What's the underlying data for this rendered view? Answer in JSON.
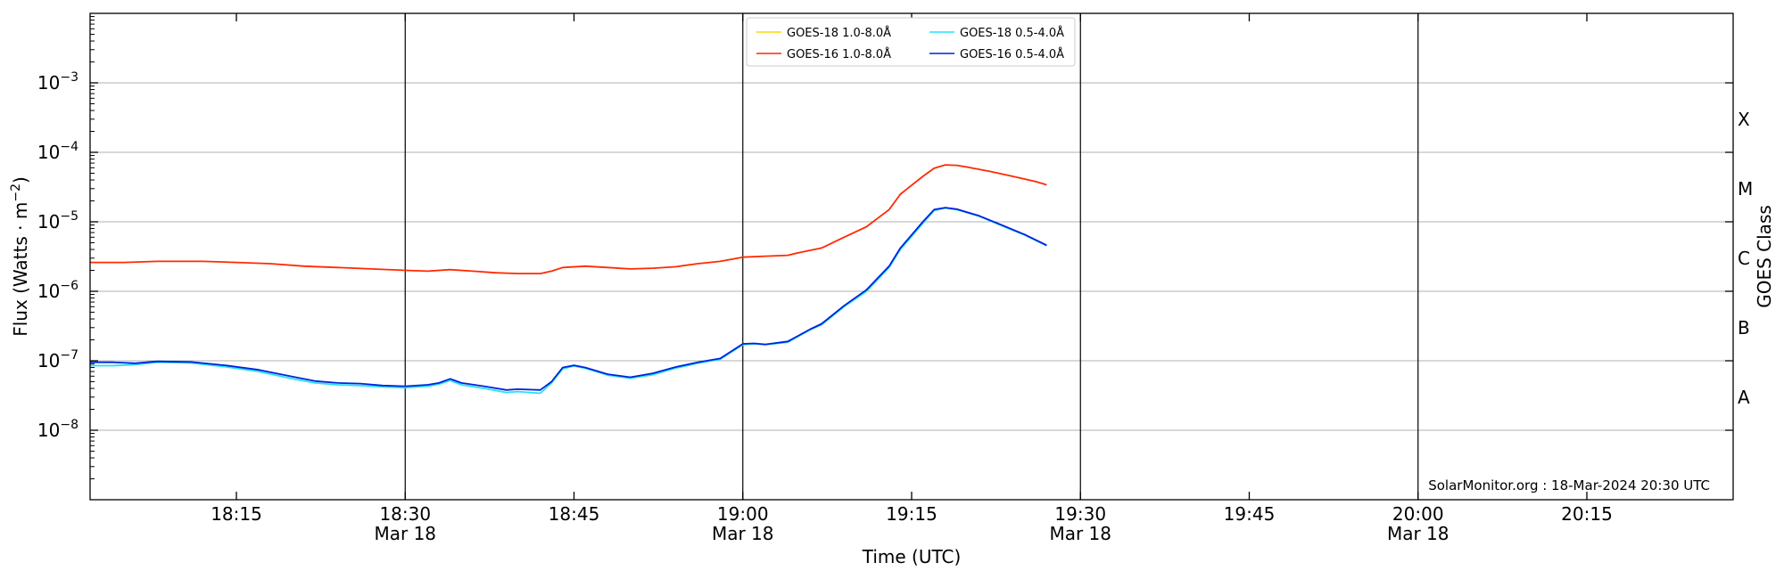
{
  "chart_data": {
    "type": "line",
    "title": "",
    "xlabel": "Time (UTC)",
    "ylabel": "Flux (Watts · m",
    "ylabel_sup": "−2",
    "ylabel_end": ")",
    "ylabel_right": "GOES Class",
    "y_scale": "log",
    "ylim": [
      1e-09,
      0.01
    ],
    "xlim": [
      "18:02",
      "20:28"
    ],
    "grid": "horizontal at decades",
    "legend_position": "top-center",
    "y_ticks": [
      {
        "value": 1e-08,
        "base": "10",
        "exp": "−8"
      },
      {
        "value": 1e-07,
        "base": "10",
        "exp": "−7"
      },
      {
        "value": 1e-06,
        "base": "10",
        "exp": "−6"
      },
      {
        "value": 1e-05,
        "base": "10",
        "exp": "−5"
      },
      {
        "value": 0.0001,
        "base": "10",
        "exp": "−4"
      },
      {
        "value": 0.001,
        "base": "10",
        "exp": "−3"
      }
    ],
    "goes_classes": [
      {
        "label": "A",
        "value": 3e-08
      },
      {
        "label": "B",
        "value": 3e-07
      },
      {
        "label": "C",
        "value": 3e-06
      },
      {
        "label": "M",
        "value": 3e-05
      },
      {
        "label": "X",
        "value": 0.0003
      }
    ],
    "x_ticks": [
      {
        "time": "18:15",
        "label": "18:15",
        "date": ""
      },
      {
        "time": "18:30",
        "label": "18:30",
        "date": "Mar 18"
      },
      {
        "time": "18:45",
        "label": "18:45",
        "date": ""
      },
      {
        "time": "19:00",
        "label": "19:00",
        "date": "Mar 18"
      },
      {
        "time": "19:15",
        "label": "19:15",
        "date": ""
      },
      {
        "time": "19:30",
        "label": "19:30",
        "date": "Mar 18"
      },
      {
        "time": "19:45",
        "label": "19:45",
        "date": ""
      },
      {
        "time": "20:00",
        "label": "20:00",
        "date": "Mar 18"
      },
      {
        "time": "20:15",
        "label": "20:15",
        "date": ""
      }
    ],
    "vertical_lines": [
      "18:30",
      "19:00",
      "19:30",
      "20:00"
    ],
    "series": [
      {
        "name": "GOES-18 1.0-8.0Å",
        "color": "#ffd700",
        "x": [],
        "y": []
      },
      {
        "name": "GOES-16 1.0-8.0Å",
        "color": "#ff2a00",
        "x": [
          "18:02",
          "18:05",
          "18:08",
          "18:12",
          "18:15",
          "18:18",
          "18:21",
          "18:24",
          "18:27",
          "18:30",
          "18:32",
          "18:34",
          "18:36",
          "18:38",
          "18:40",
          "18:42",
          "18:43",
          "18:44",
          "18:46",
          "18:48",
          "18:50",
          "18:52",
          "18:54",
          "18:56",
          "18:58",
          "19:00",
          "19:02",
          "19:04",
          "19:05",
          "19:07",
          "19:09",
          "19:11",
          "19:13",
          "19:14",
          "19:16",
          "19:17",
          "19:18",
          "19:19",
          "19:20",
          "19:22",
          "19:24",
          "19:26",
          "19:27"
        ],
        "y": [
          2.6e-06,
          2.6e-06,
          2.7e-06,
          2.7e-06,
          2.6e-06,
          2.5e-06,
          2.3e-06,
          2.2e-06,
          2.1e-06,
          2e-06,
          1.95e-06,
          2.05e-06,
          1.95e-06,
          1.85e-06,
          1.8e-06,
          1.8e-06,
          1.95e-06,
          2.2e-06,
          2.3e-06,
          2.2e-06,
          2.1e-06,
          2.15e-06,
          2.25e-06,
          2.5e-06,
          2.7e-06,
          3.1e-06,
          3.2e-06,
          3.3e-06,
          3.6e-06,
          4.2e-06,
          6e-06,
          8.5e-06,
          1.5e-05,
          2.5e-05,
          4.5e-05,
          5.9e-05,
          6.6e-05,
          6.5e-05,
          6.1e-05,
          5.3e-05,
          4.5e-05,
          3.8e-05,
          3.4e-05
        ]
      },
      {
        "name": "GOES-18 0.5-4.0Å",
        "color": "#22e0ff",
        "x": [
          "18:02",
          "18:04",
          "18:06",
          "18:08",
          "18:11",
          "18:14",
          "18:17",
          "18:20",
          "18:22",
          "18:24",
          "18:26",
          "18:28",
          "18:30",
          "18:32",
          "18:33",
          "18:34",
          "18:35",
          "18:37",
          "18:39",
          "18:40",
          "18:42",
          "18:43",
          "18:44",
          "18:45",
          "18:46",
          "18:48",
          "18:50",
          "18:52",
          "18:54",
          "18:56",
          "18:58",
          "19:00",
          "19:01",
          "19:02",
          "19:04",
          "19:06",
          "19:07",
          "19:09",
          "19:11",
          "19:13",
          "19:14",
          "19:16",
          "19:17",
          "19:18",
          "19:19",
          "19:21",
          "19:23",
          "19:25",
          "19:27"
        ],
        "y": [
          8.5e-08,
          8.5e-08,
          8.8e-08,
          9.5e-08,
          9.3e-08,
          8.2e-08,
          7e-08,
          5.5e-08,
          4.8e-08,
          4.5e-08,
          4.4e-08,
          4.2e-08,
          4.1e-08,
          4.3e-08,
          4.6e-08,
          5.2e-08,
          4.5e-08,
          4e-08,
          3.5e-08,
          3.6e-08,
          3.4e-08,
          4.8e-08,
          7.7e-08,
          8.4e-08,
          7.8e-08,
          6.2e-08,
          5.6e-08,
          6.3e-08,
          7.8e-08,
          9.2e-08,
          1.05e-07,
          1.7e-07,
          1.75e-07,
          1.7e-07,
          1.85e-07,
          2.8e-07,
          3.3e-07,
          6e-07,
          1e-06,
          2.2e-06,
          4e-06,
          9.5e-06,
          1.45e-05,
          1.58e-05,
          1.5e-05,
          1.2e-05,
          8.8e-06,
          6.5e-06,
          4.5e-06
        ]
      },
      {
        "name": "GOES-16 0.5-4.0Å",
        "color": "#0022dd",
        "x": [
          "18:02",
          "18:04",
          "18:06",
          "18:08",
          "18:11",
          "18:14",
          "18:17",
          "18:20",
          "18:22",
          "18:24",
          "18:26",
          "18:28",
          "18:30",
          "18:32",
          "18:33",
          "18:34",
          "18:35",
          "18:37",
          "18:39",
          "18:40",
          "18:42",
          "18:43",
          "18:44",
          "18:45",
          "18:46",
          "18:48",
          "18:50",
          "18:52",
          "18:54",
          "18:56",
          "18:58",
          "19:00",
          "19:01",
          "19:02",
          "19:04",
          "19:06",
          "19:07",
          "19:09",
          "19:11",
          "19:13",
          "19:14",
          "19:16",
          "19:17",
          "19:18",
          "19:19",
          "19:21",
          "19:23",
          "19:25",
          "19:27"
        ],
        "y": [
          9.5e-08,
          9.5e-08,
          9.2e-08,
          9.8e-08,
          9.6e-08,
          8.6e-08,
          7.4e-08,
          5.9e-08,
          5.1e-08,
          4.8e-08,
          4.7e-08,
          4.4e-08,
          4.3e-08,
          4.5e-08,
          4.8e-08,
          5.5e-08,
          4.8e-08,
          4.3e-08,
          3.8e-08,
          3.9e-08,
          3.8e-08,
          5e-08,
          8e-08,
          8.6e-08,
          8e-08,
          6.4e-08,
          5.8e-08,
          6.6e-08,
          8.1e-08,
          9.5e-08,
          1.08e-07,
          1.75e-07,
          1.78e-07,
          1.72e-07,
          1.9e-07,
          2.85e-07,
          3.4e-07,
          6.2e-07,
          1.05e-06,
          2.3e-06,
          4.2e-06,
          1e-05,
          1.5e-05,
          1.6e-05,
          1.52e-05,
          1.22e-05,
          9e-06,
          6.6e-06,
          4.6e-06
        ]
      }
    ],
    "credit": "SolarMonitor.org : 18-Mar-2024 20:30 UTC"
  }
}
